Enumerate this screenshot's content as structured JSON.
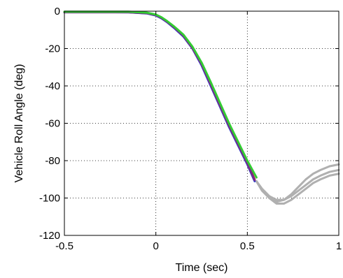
{
  "chart_data": {
    "type": "line",
    "xlabel": "Time (sec)",
    "ylabel": "Vehicle Roll Angle (deg)",
    "xlim": [
      -0.5,
      1
    ],
    "ylim": [
      -120,
      0
    ],
    "xticks": [
      -0.5,
      0,
      0.5,
      1
    ],
    "xtick_labels": [
      "-0.5",
      "0",
      "0.5",
      "1"
    ],
    "yticks": [
      0,
      -20,
      -40,
      -60,
      -80,
      -100,
      -120
    ],
    "ytick_labels": [
      "0",
      "-20",
      "-40",
      "-60",
      "-80",
      "-100",
      "-120"
    ],
    "grid": true,
    "series": [
      {
        "color": "#b0b0b0",
        "x": [
          0.55,
          0.58,
          0.62,
          0.66,
          0.7,
          0.74,
          0.78,
          0.82,
          0.86,
          0.9,
          0.95,
          1.0
        ],
        "y": [
          -91,
          -95,
          -99,
          -101,
          -101,
          -99,
          -96,
          -93,
          -90,
          -88,
          -86,
          -85
        ]
      },
      {
        "color": "#b0b0b0",
        "x": [
          0.55,
          0.58,
          0.62,
          0.66,
          0.7,
          0.74,
          0.78,
          0.82,
          0.86,
          0.9,
          0.95,
          1.0
        ],
        "y": [
          -91,
          -96,
          -100,
          -102,
          -101,
          -98,
          -94,
          -90,
          -87,
          -85,
          -83,
          -82
        ]
      },
      {
        "color": "#b0b0b0",
        "x": [
          0.55,
          0.58,
          0.62,
          0.66,
          0.7,
          0.74,
          0.78,
          0.82,
          0.86,
          0.9,
          0.95,
          1.0
        ],
        "y": [
          -91,
          -96,
          -100,
          -103,
          -103,
          -101,
          -98,
          -95,
          -92,
          -90,
          -88,
          -87
        ]
      },
      {
        "color": "#cc2222",
        "x": [
          -0.5,
          -0.3,
          -0.15,
          -0.05,
          0.0,
          0.03,
          0.06,
          0.1,
          0.15,
          0.2,
          0.25,
          0.3,
          0.35,
          0.4,
          0.45,
          0.5,
          0.54
        ],
        "y": [
          -0.5,
          -0.5,
          -0.5,
          -1.0,
          -2.0,
          -3.5,
          -5.5,
          -8.5,
          -13,
          -19.5,
          -28,
          -39,
          -50,
          -61,
          -71,
          -81,
          -90
        ]
      },
      {
        "color": "#1a3fd6",
        "x": [
          -0.5,
          -0.3,
          -0.15,
          -0.05,
          0.0,
          0.03,
          0.06,
          0.1,
          0.15,
          0.2,
          0.25,
          0.3,
          0.35,
          0.4,
          0.45,
          0.5,
          0.54
        ],
        "y": [
          -0.5,
          -0.5,
          -0.6,
          -1.2,
          -2.3,
          -3.8,
          -5.8,
          -9,
          -13.5,
          -20,
          -29,
          -40,
          -51,
          -62,
          -72,
          -82,
          -91
        ]
      },
      {
        "color": "#7a2a8a",
        "x": [
          -0.5,
          -0.3,
          -0.15,
          -0.05,
          0.0,
          0.03,
          0.06,
          0.1,
          0.15,
          0.2,
          0.25,
          0.3,
          0.35,
          0.4,
          0.45,
          0.5,
          0.54
        ],
        "y": [
          -0.6,
          -0.6,
          -0.6,
          -1.1,
          -2.1,
          -3.6,
          -5.6,
          -8.7,
          -13.2,
          -19.8,
          -28.5,
          -39.5,
          -50.5,
          -61.5,
          -71.5,
          -81.5,
          -90.5
        ]
      },
      {
        "color": "#33cc33",
        "x": [
          -0.5,
          -0.3,
          -0.15,
          -0.05,
          0.0,
          0.03,
          0.06,
          0.1,
          0.15,
          0.2,
          0.25,
          0.3,
          0.35,
          0.4,
          0.45,
          0.5,
          0.55
        ],
        "y": [
          -0.3,
          -0.3,
          -0.3,
          -0.8,
          -1.8,
          -3.2,
          -5.2,
          -8.2,
          -12.5,
          -19,
          -27.5,
          -38,
          -49,
          -60,
          -70,
          -80,
          -89
        ]
      }
    ]
  }
}
